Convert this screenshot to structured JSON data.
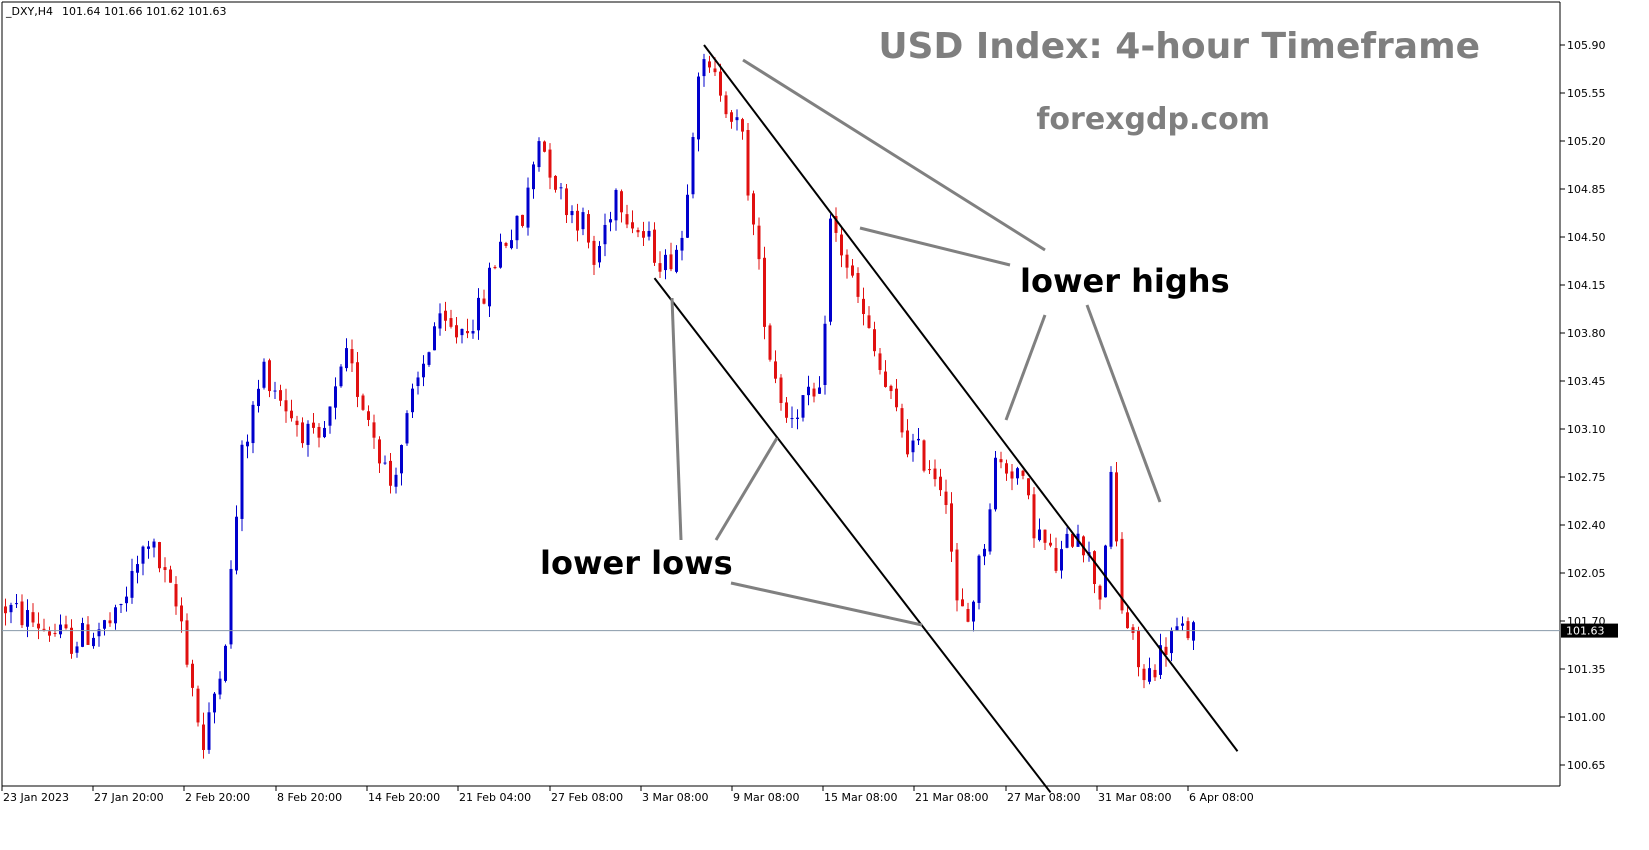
{
  "header": {
    "symbol": "_DXY,H4",
    "ohlc": "101.64 101.66 101.62 101.63"
  },
  "watermark": {
    "title": "USD Index: 4-hour Timeframe",
    "site": "forexgdp.com"
  },
  "annotations": {
    "lower_highs": "lower highs",
    "lower_lows": "lower lows"
  },
  "current_price_label": "101.63",
  "colors": {
    "bull": "#0000cc",
    "bear": "#e01010",
    "trendline": "#000000",
    "pointer": "#808080",
    "price_line": "#8899aa",
    "title": "#7f7f7f"
  },
  "chart_data": {
    "type": "candlestick",
    "title": "USD Index: 4-hour Timeframe",
    "ylim": [
      100.5,
      106.05
    ],
    "y_ticks": [
      "105.90",
      "105.55",
      "105.20",
      "104.85",
      "104.50",
      "104.15",
      "103.80",
      "103.45",
      "103.10",
      "102.75",
      "102.40",
      "102.05",
      "101.70",
      "101.35",
      "101.00",
      "100.65"
    ],
    "x_ticks": [
      "23 Jan 2023",
      "27 Jan 20:00",
      "2 Feb 20:00",
      "8 Feb 20:00",
      "14 Feb 20:00",
      "21 Feb 04:00",
      "27 Feb 08:00",
      "3 Mar 08:00",
      "9 Mar 08:00",
      "15 Mar 08:00",
      "21 Mar 08:00",
      "27 Mar 08:00",
      "31 Mar 08:00",
      "6 Apr 08:00"
    ],
    "current_price": 101.63,
    "close_path": [
      [
        0,
        101.8
      ],
      [
        12,
        101.55
      ],
      [
        20,
        101.7
      ],
      [
        26,
        102.3
      ],
      [
        32,
        101.7
      ],
      [
        36,
        100.75
      ],
      [
        40,
        101.6
      ],
      [
        43,
        102.9
      ],
      [
        47,
        103.55
      ],
      [
        52,
        103.2
      ],
      [
        57,
        102.95
      ],
      [
        62,
        103.6
      ],
      [
        66,
        103.2
      ],
      [
        70,
        102.7
      ],
      [
        74,
        103.3
      ],
      [
        78,
        103.85
      ],
      [
        82,
        103.8
      ],
      [
        86,
        103.95
      ],
      [
        90,
        104.45
      ],
      [
        94,
        104.6
      ],
      [
        97,
        105.25
      ],
      [
        101,
        104.8
      ],
      [
        105,
        104.6
      ],
      [
        107,
        104.3
      ],
      [
        111,
        104.85
      ],
      [
        115,
        104.55
      ],
      [
        120,
        104.3
      ],
      [
        123,
        104.5
      ],
      [
        126,
        105.75
      ],
      [
        130,
        105.6
      ],
      [
        134,
        105.2
      ],
      [
        137,
        104.25
      ],
      [
        139,
        103.65
      ],
      [
        142,
        103.2
      ],
      [
        145,
        103.3
      ],
      [
        148,
        103.3
      ],
      [
        150,
        104.6
      ],
      [
        153,
        104.3
      ],
      [
        156,
        103.9
      ],
      [
        160,
        103.4
      ],
      [
        164,
        103.0
      ],
      [
        168,
        102.85
      ],
      [
        171,
        102.65
      ],
      [
        173,
        101.8
      ],
      [
        175,
        101.7
      ],
      [
        178,
        102.3
      ],
      [
        180,
        102.85
      ],
      [
        184,
        102.8
      ],
      [
        187,
        102.4
      ],
      [
        191,
        102.1
      ],
      [
        195,
        102.4
      ],
      [
        199,
        101.9
      ],
      [
        201,
        102.7
      ],
      [
        203,
        101.8
      ],
      [
        207,
        101.25
      ],
      [
        212,
        101.6
      ],
      [
        216,
        101.63
      ]
    ],
    "trendlines": [
      {
        "name": "upper channel",
        "from": [
          127,
          105.9
        ],
        "to": [
          224,
          100.75
        ]
      },
      {
        "name": "lower channel",
        "from": [
          118,
          104.2
        ],
        "to": [
          190,
          100.45
        ]
      }
    ]
  }
}
